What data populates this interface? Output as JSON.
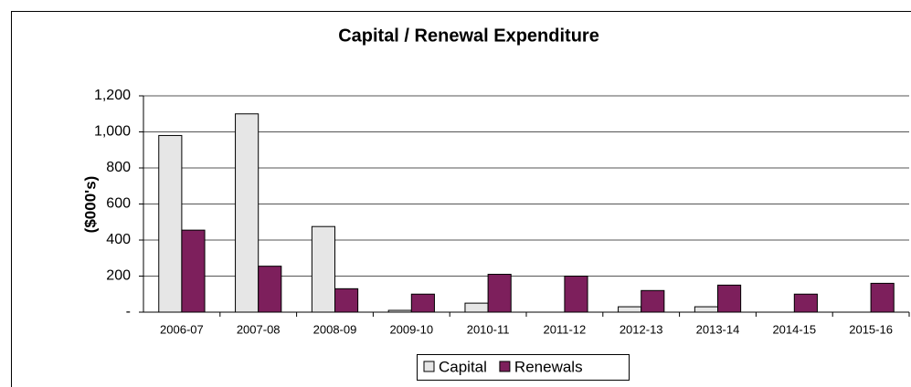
{
  "chart_data": {
    "type": "bar",
    "title": "Capital / Renewal Expenditure",
    "y_label": "($000's)",
    "categories": [
      "2006-07",
      "2007-08",
      "2008-09",
      "2009-10",
      "2010-11",
      "2011-12",
      "2012-13",
      "2013-14",
      "2014-15",
      "2015-16"
    ],
    "series": [
      {
        "name": "Capital",
        "color": "#e6e6e6",
        "values": [
          980,
          1100,
          475,
          10,
          50,
          0,
          30,
          30,
          0,
          0
        ]
      },
      {
        "name": "Renewals",
        "color": "#7d1f5c",
        "values": [
          455,
          255,
          130,
          100,
          210,
          200,
          120,
          150,
          100,
          160
        ]
      }
    ],
    "ylim": [
      0,
      1200
    ],
    "yticks": [
      {
        "value": 0,
        "label": "-"
      },
      200,
      400,
      600,
      800,
      {
        "value": 1000,
        "label": "1,000"
      },
      {
        "value": 1200,
        "label": "1,200"
      }
    ],
    "grid": true,
    "legend": "bottom"
  }
}
